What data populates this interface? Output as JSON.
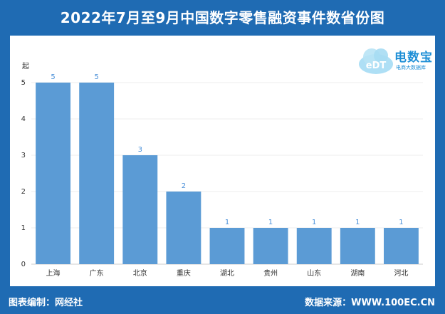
{
  "title": "2022年7月至9月中国数字零售融资事件数省份图",
  "logo": {
    "brand": "电数宝",
    "subtitle": "电商大数据库",
    "icon": "edt-cloud-icon",
    "cloud_text": "eDT"
  },
  "footer": {
    "left": "图表编制：网经社",
    "right": "数据来源：WWW.100EC.CN"
  },
  "colors": {
    "bar": "#5b9bd5",
    "header_bg": "#1f6bb3",
    "value_label": "#4a90d9"
  },
  "chart_data": {
    "type": "bar",
    "ylabel": "起",
    "ylim": [
      0,
      5
    ],
    "yticks": [
      0,
      1,
      2,
      3,
      4,
      5
    ],
    "grid": true,
    "categories": [
      "上海",
      "广东",
      "北京",
      "重庆",
      "湖北",
      "贵州",
      "山东",
      "湖南",
      "河北"
    ],
    "values": [
      5,
      5,
      3,
      2,
      1,
      1,
      1,
      1,
      1
    ]
  }
}
